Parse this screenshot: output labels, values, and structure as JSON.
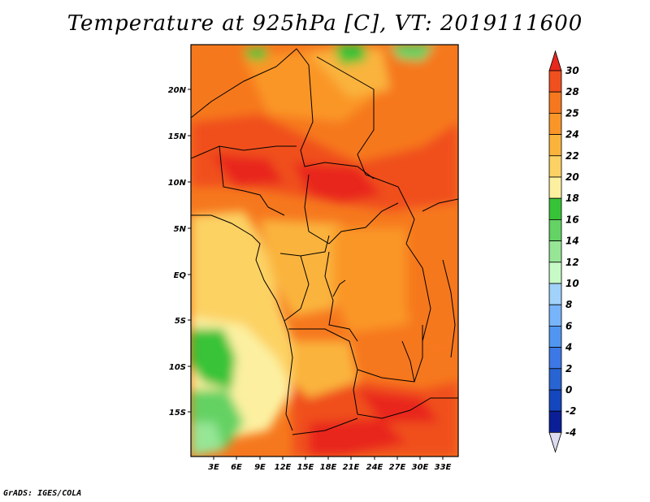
{
  "title": "Temperature at 925hPa [C], VT: 2019111600",
  "footer": "GrADS: IGES/COLA",
  "map": {
    "lat_ticks": [
      "20N",
      "15N",
      "10N",
      "5N",
      "EQ",
      "5S",
      "10S",
      "15S"
    ],
    "lon_ticks": [
      "3E",
      "6E",
      "9E",
      "12E",
      "15E",
      "18E",
      "21E",
      "24E",
      "27E",
      "30E",
      "33E"
    ],
    "lon_range": [
      0,
      35
    ],
    "lat_range": [
      -20,
      24.5
    ],
    "region": "Central Africa"
  },
  "colorbar": {
    "levels": [
      "30",
      "28",
      "25",
      "24",
      "22",
      "20",
      "18",
      "16",
      "14",
      "12",
      "10",
      "8",
      "6",
      "4",
      "2",
      "0",
      "-2",
      "-4"
    ],
    "colors_top_to_bottom": [
      "#e8281e",
      "#f0501e",
      "#f6781e",
      "#fa9628",
      "#fab43c",
      "#fcd264",
      "#fcf0a0",
      "#37c337",
      "#64d264",
      "#96e696",
      "#c8fac8",
      "#a0d2fa",
      "#78b4fa",
      "#5096f0",
      "#3c78e6",
      "#2864d2",
      "#1446be",
      "#0a1e96",
      "#dcdcf0"
    ],
    "over_color": "#e8281e",
    "under_color": "#dcdcf0"
  }
}
